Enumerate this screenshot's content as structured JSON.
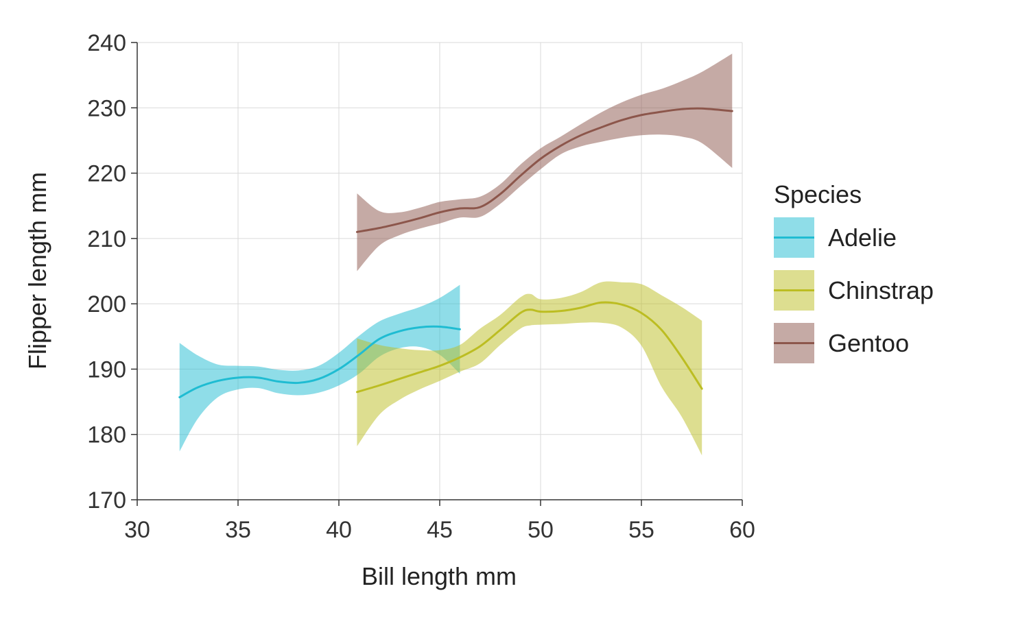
{
  "chart_data": {
    "type": "line",
    "title": "",
    "xlabel": "Bill length mm",
    "ylabel": "Flipper length mm",
    "xlim": [
      30,
      60
    ],
    "ylim": [
      170,
      240
    ],
    "xticks": [
      30,
      35,
      40,
      45,
      50,
      55,
      60
    ],
    "yticks": [
      170,
      180,
      190,
      200,
      210,
      220,
      230,
      240
    ],
    "grid": true,
    "legend": {
      "title": "Species",
      "placement": "right"
    },
    "series": [
      {
        "name": "Adelie",
        "color": "#1fbcd2",
        "x": [
          32.1,
          33.0,
          34.0,
          35.0,
          36.0,
          37.0,
          38.0,
          39.0,
          40.0,
          41.0,
          42.0,
          43.0,
          44.0,
          45.0,
          46.0
        ],
        "y": [
          185.7,
          187.2,
          188.2,
          188.7,
          188.7,
          188.1,
          187.9,
          188.5,
          190.0,
          192.2,
          194.6,
          195.8,
          196.4,
          196.5,
          196.1
        ],
        "lower": [
          177.4,
          182.4,
          185.7,
          186.9,
          187.1,
          186.3,
          186.0,
          186.4,
          187.5,
          189.3,
          191.9,
          193.2,
          193.4,
          192.2,
          189.3
        ],
        "upper": [
          194.0,
          192.1,
          190.7,
          190.5,
          190.4,
          189.9,
          189.8,
          190.5,
          192.5,
          195.1,
          197.3,
          198.5,
          199.5,
          200.9,
          202.9
        ]
      },
      {
        "name": "Chinstrap",
        "color": "#bcbd22",
        "x": [
          40.9,
          42.0,
          43.0,
          44.0,
          45.0,
          46.0,
          47.0,
          48.0,
          49.0,
          49.5,
          50.0,
          51.0,
          52.0,
          53.0,
          54.0,
          55.0,
          56.0,
          57.0,
          58.0
        ],
        "y": [
          186.5,
          187.5,
          188.5,
          189.5,
          190.5,
          191.8,
          193.5,
          196.0,
          198.6,
          199.1,
          198.8,
          198.9,
          199.4,
          200.2,
          199.9,
          198.6,
          196.0,
          191.8,
          187.0
        ],
        "lower": [
          178.2,
          183.0,
          185.3,
          186.9,
          188.2,
          189.6,
          190.9,
          193.7,
          196.2,
          196.7,
          196.8,
          196.9,
          197.1,
          197.1,
          196.4,
          193.6,
          187.3,
          182.7,
          176.8
        ],
        "upper": [
          194.7,
          193.7,
          193.2,
          192.9,
          192.9,
          193.7,
          196.2,
          198.3,
          201.0,
          201.5,
          200.7,
          200.9,
          201.8,
          203.3,
          203.3,
          203.0,
          201.3,
          199.5,
          197.4
        ]
      },
      {
        "name": "Gentoo",
        "color": "#8c564b",
        "x": [
          40.9,
          42.0,
          43.0,
          44.0,
          45.0,
          46.0,
          47.0,
          48.0,
          49.0,
          50.0,
          51.0,
          52.0,
          53.0,
          54.0,
          55.0,
          56.0,
          57.0,
          58.0,
          59.5
        ],
        "y": [
          211.0,
          211.6,
          212.3,
          213.1,
          214.0,
          214.6,
          214.8,
          216.8,
          219.6,
          222.2,
          224.2,
          225.8,
          227.0,
          228.1,
          228.9,
          229.4,
          229.8,
          229.9,
          229.5
        ],
        "lower": [
          205.0,
          208.9,
          210.5,
          211.5,
          212.3,
          213.2,
          213.3,
          215.3,
          218.0,
          220.6,
          222.9,
          224.1,
          224.8,
          225.4,
          225.8,
          225.9,
          225.6,
          224.6,
          220.8
        ],
        "upper": [
          216.9,
          214.2,
          214.0,
          214.7,
          215.6,
          216.0,
          216.4,
          218.3,
          221.3,
          223.8,
          225.6,
          227.5,
          229.3,
          230.8,
          232.0,
          232.9,
          234.1,
          235.5,
          238.3
        ]
      }
    ]
  }
}
